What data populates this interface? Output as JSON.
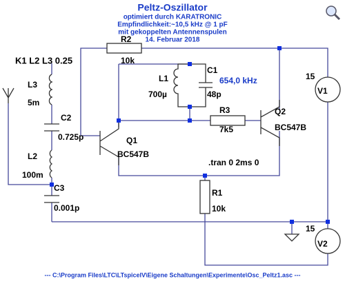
{
  "header": {
    "title": "Peltz-Oszillator",
    "lines": [
      "optimiert durch KARATRONIC",
      "Empfindlichkeit:~10,5 kHz @ 1 pF",
      "mit gekoppelten Antennenspulen",
      "14. Februar 2018"
    ]
  },
  "coupling": "K1 L2 L3 0.25",
  "components": {
    "R2": {
      "name": "R2",
      "value": "10k"
    },
    "L1": {
      "name": "L1",
      "value": "700µ"
    },
    "C1": {
      "name": "C1",
      "value": "48p"
    },
    "L3": {
      "name": "L3",
      "value": "5m"
    },
    "C2": {
      "name": "C2",
      "value": "0.725p"
    },
    "L2": {
      "name": "L2",
      "value": "100m"
    },
    "C3": {
      "name": "C3",
      "value": "0.001p"
    },
    "R3": {
      "name": "R3",
      "value": "7k5"
    },
    "Q1": {
      "name": "Q1",
      "value": "BC547B"
    },
    "Q2": {
      "name": "Q2",
      "value": "BC547B"
    },
    "R1": {
      "name": "R1",
      "value": "10k"
    },
    "V1": {
      "name": "V1",
      "value": "15"
    },
    "V2": {
      "name": "V2",
      "value": "15"
    }
  },
  "frequency": "654,0 kHz",
  "directive": ".tran 0 2ms 0",
  "footer": "--- C:\\Program Files\\LTC\\LTspiceIV\\Eigene Schaltungen\\Experimente\\Osc_Peltz1.asc ---"
}
